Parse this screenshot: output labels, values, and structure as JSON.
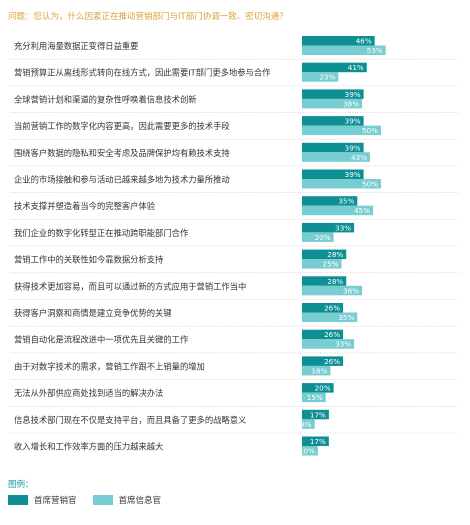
{
  "question": "问题：您认为，什么因素正在推动营销部门与IT部门协调一致、密切沟通？",
  "legend": {
    "title": "图例：",
    "cmo_label": "首席营销官",
    "cio_label": "首席信息官"
  },
  "colors": {
    "cmo": "#0d8f94",
    "cio": "#77cdd0",
    "question": "#d9a43a"
  },
  "chart_data": {
    "type": "bar",
    "orientation": "horizontal",
    "xlim": [
      0,
      100
    ],
    "categories": [
      "充分利用海量数据正变得日益重要",
      "营销预算正从离线形式转向在线方式，因此需要IT部门更多地参与合作",
      "全球营销计划和渠道的复杂性呼唤着信息技术创新",
      "当前营销工作的数字化内容更高，因此需要更多的技术手段",
      "围绕客户数据的隐私和安全考虑及品牌保护均有赖技术支持",
      "企业的市场接触和参与活动已越来越多地为技术力量所推动",
      "技术支撑并塑造着当今的完整客户体验",
      "我们企业的数字化转型正在推动跨职能部门合作",
      "营销工作中的关联性如今靠数据分析支持",
      "获得技术更加容易，而且可以通过新的方式应用于营销工作当中",
      "获得客户洞察和商情是建立竞争优势的关键",
      "营销自动化是流程改进中一项优先且关键的工作",
      "由于对数字技术的需求，营销工作跟不上销量的增加",
      "无法从外部供应商处找到适当的解决办法",
      "信息技术部门现在不仅是支持平台，而且具备了更多的战略意义",
      "收入增长和工作效率方面的压力越来越大"
    ],
    "series": [
      {
        "name": "首席营销官",
        "values": [
          46,
          41,
          39,
          39,
          39,
          39,
          35,
          33,
          28,
          28,
          26,
          26,
          26,
          20,
          17,
          17
        ],
        "labels": [
          "46%",
          "41%",
          "39%",
          "39%",
          "39%",
          "39%",
          "35%",
          "33%",
          "28%",
          "28%",
          "26%",
          "26%",
          "26%",
          "20%",
          "17%",
          "17%"
        ]
      },
      {
        "name": "首席信息官",
        "values": [
          53,
          23,
          38,
          50,
          43,
          50,
          45,
          20,
          25,
          38,
          35,
          33,
          18,
          15,
          8,
          10
        ],
        "labels": [
          "53%",
          "23%",
          "38%",
          "50%",
          "43%",
          "50%",
          "45%",
          "20%",
          "25%",
          "38%",
          "35%",
          "33%",
          "18%",
          "15%",
          "8%",
          "10%"
        ]
      }
    ]
  }
}
